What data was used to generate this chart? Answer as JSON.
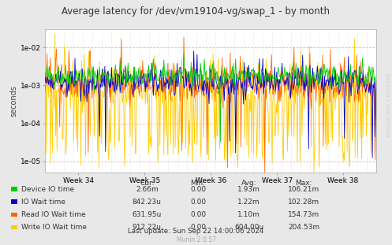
{
  "title": "Average latency for /dev/vm19104-vg/swap_1 - by month",
  "ylabel": "seconds",
  "xlabel_ticks": [
    "Week 34",
    "Week 35",
    "Week 36",
    "Week 37",
    "Week 38"
  ],
  "xlabel_tick_pos": [
    0.1,
    0.3,
    0.5,
    0.7,
    0.9
  ],
  "bg_color": "#e8e8e8",
  "plot_bg_color": "#ffffff",
  "grid_color_major": "#ffaaaa",
  "line_colors": {
    "device_io": "#00cc00",
    "io_wait": "#0000cc",
    "read_io_wait": "#ff6600",
    "write_io_wait": "#ffcc00"
  },
  "legend": [
    {
      "label": "Device IO time",
      "color": "#00cc00"
    },
    {
      "label": "IO Wait time",
      "color": "#0000cc"
    },
    {
      "label": "Read IO Wait time",
      "color": "#ff6600"
    },
    {
      "label": "Write IO Wait time",
      "color": "#ffcc00"
    }
  ],
  "table_headers": [
    "Cur:",
    "Min:",
    "Avg:",
    "Max:"
  ],
  "table_rows": [
    [
      "2.66m",
      "0.00",
      "1.93m",
      "106.21m"
    ],
    [
      "842.23u",
      "0.00",
      "1.22m",
      "102.28m"
    ],
    [
      "631.95u",
      "0.00",
      "1.10m",
      "154.73m"
    ],
    [
      "912.22u",
      "0.00",
      "604.00u",
      "204.53m"
    ]
  ],
  "footer": "Last update: Sun Sep 22 14:00:06 2024",
  "watermark": "Munin 2.0.57",
  "rrdtool_label": "RRDTOOL / TOBI OETIKER",
  "n_points": 500,
  "seed": 42
}
